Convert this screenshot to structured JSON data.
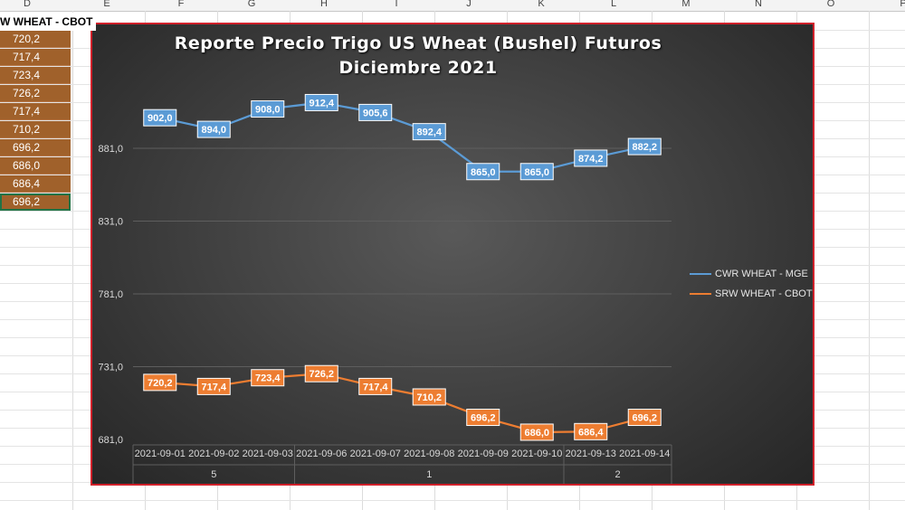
{
  "spreadsheet": {
    "columns": [
      "D",
      "E",
      "F",
      "G",
      "H",
      "I",
      "J",
      "K",
      "L",
      "M",
      "N",
      "O",
      "P"
    ],
    "column_title": "W WHEAT - CBOT",
    "cells": [
      "720,2",
      "717,4",
      "723,4",
      "726,2",
      "717,4",
      "710,2",
      "696,2",
      "686,0",
      "686,4",
      "696,2"
    ]
  },
  "colors": {
    "cwr": "#5b9bd5",
    "srw": "#ed7d31",
    "cell_fill": "#a0612b",
    "chart_border": "#d0202a"
  },
  "chart_data": {
    "type": "line",
    "title": "Reporte Precio Trigo US Wheat (Bushel) Futuros Diciembre 2021",
    "categories": [
      "2021-09-01",
      "2021-09-02",
      "2021-09-03",
      "2021-09-06",
      "2021-09-07",
      "2021-09-08",
      "2021-09-09",
      "2021-09-10",
      "2021-09-13",
      "2021-09-14"
    ],
    "category_groups": [
      {
        "label": "5",
        "start": 0,
        "end": 2
      },
      {
        "label": "1",
        "start": 3,
        "end": 7
      },
      {
        "label": "2",
        "start": 8,
        "end": 9
      }
    ],
    "series": [
      {
        "name": "CWR WHEAT - MGE",
        "values": [
          902.0,
          894.0,
          908.0,
          912.4,
          905.6,
          892.4,
          865.0,
          865.0,
          874.2,
          882.2
        ],
        "labels": [
          "902,0",
          "894,0",
          "908,0",
          "912,4",
          "905,6",
          "892,4",
          "865,0",
          "865,0",
          "874,2",
          "882,2"
        ]
      },
      {
        "name": "SRW WHEAT - CBOT",
        "values": [
          720.2,
          717.4,
          723.4,
          726.2,
          717.4,
          710.2,
          696.2,
          686.0,
          686.4,
          696.2
        ],
        "labels": [
          "720,2",
          "717,4",
          "723,4",
          "726,2",
          "717,4",
          "710,2",
          "696,2",
          "686,0",
          "686,4",
          "696,2"
        ]
      }
    ],
    "y_ticks": [
      681.0,
      731.0,
      781.0,
      831.0,
      881.0
    ],
    "y_tick_labels": [
      "681,0",
      "731,0",
      "781,0",
      "831,0",
      "881,0"
    ],
    "ylim": [
      681.0,
      881.0
    ],
    "grid": true,
    "legend": "right"
  }
}
